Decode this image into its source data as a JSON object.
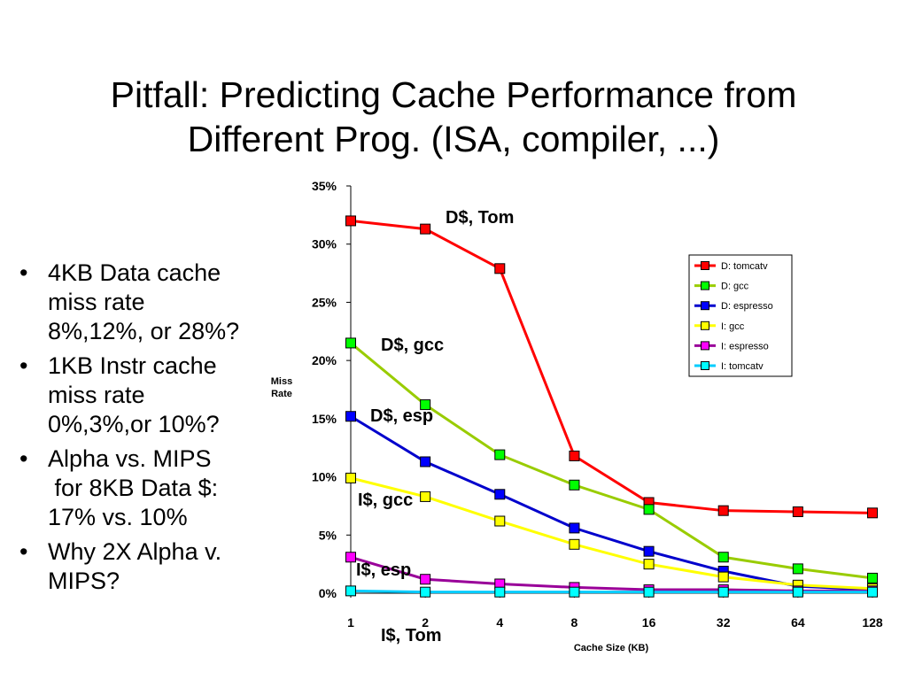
{
  "title": {
    "line1": "Pitfall: Predicting Cache Performance from",
    "line2": "Different Prog. (ISA, compiler, ...)"
  },
  "bullets": [
    [
      "4KB Data cache",
      "miss rate",
      "8%,12%, or 28%?"
    ],
    [
      "1KB Instr cache",
      "miss rate",
      "0%,3%,or 10%?"
    ],
    [
      "Alpha vs. MIPS",
      " for 8KB Data $:",
      "17% vs. 10%"
    ],
    [
      "Why 2X Alpha v.",
      "MIPS?"
    ]
  ],
  "chart_data": {
    "type": "line",
    "xlabel": "Cache Size (KB)",
    "ylabel_lines": [
      "Miss",
      "Rate"
    ],
    "x": [
      1,
      2,
      4,
      8,
      16,
      32,
      64,
      128
    ],
    "x_tick_labels": [
      "1",
      "2",
      "4",
      "8",
      "16",
      "32",
      "64",
      "128"
    ],
    "x_scale": "log2",
    "ylim": [
      0,
      0.35
    ],
    "y_ticks": [
      0,
      0.05,
      0.1,
      0.15,
      0.2,
      0.25,
      0.3,
      0.35
    ],
    "y_tick_labels": [
      "0%",
      "5%",
      "10%",
      "15%",
      "20%",
      "25%",
      "30%",
      "35%"
    ],
    "grid": false,
    "legend_position": "top-right",
    "series": [
      {
        "name": "D: tomcatv",
        "color": "#ff0000",
        "values": [
          0.32,
          0.313,
          0.279,
          0.118,
          0.078,
          0.071,
          0.07,
          0.069
        ]
      },
      {
        "name": "D: gcc",
        "color": "#99cc00",
        "marker_color": "#00ff00",
        "values": [
          0.215,
          0.162,
          0.119,
          0.093,
          0.072,
          0.031,
          0.021,
          0.013
        ]
      },
      {
        "name": "D: espresso",
        "color": "#0000cc",
        "marker_color": "#0000ff",
        "values": [
          0.152,
          0.113,
          0.085,
          0.056,
          0.036,
          0.019,
          0.006,
          0.003
        ]
      },
      {
        "name": "I: gcc",
        "color": "#ffff00",
        "values": [
          0.099,
          0.083,
          0.062,
          0.042,
          0.025,
          0.014,
          0.007,
          0.004
        ]
      },
      {
        "name": "I: espresso",
        "color": "#990099",
        "marker_color": "#ff00ff",
        "values": [
          0.031,
          0.012,
          0.008,
          0.005,
          0.003,
          0.003,
          0.002,
          0.002
        ]
      },
      {
        "name": "I: tomcatv",
        "color": "#00ccff",
        "marker_color": "#00ffff",
        "values": [
          0.002,
          0.001,
          0.001,
          0.001,
          0.001,
          0.001,
          0.001,
          0.001
        ]
      }
    ],
    "annotations": [
      {
        "text": "D$, Tom",
        "series": 0
      },
      {
        "text": "D$, gcc",
        "series": 1
      },
      {
        "text": "D$, esp",
        "series": 2
      },
      {
        "text": "I$, gcc",
        "series": 3
      },
      {
        "text": "I$, esp",
        "series": 4
      },
      {
        "text": "I$, Tom",
        "series": 5
      }
    ]
  }
}
